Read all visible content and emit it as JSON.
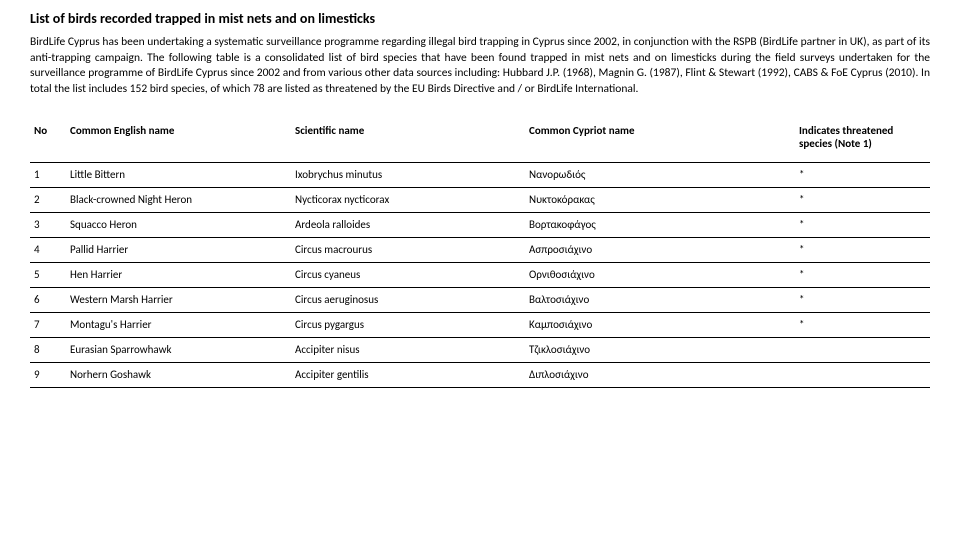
{
  "title": "List of birds recorded trapped in mist nets and on limesticks",
  "paragraph": "BirdLife Cyprus has been undertaking a systematic surveillance programme regarding illegal bird trapping in Cyprus since 2002, in conjunction with the RSPB (BirdLife partner in UK), as part of its anti-trapping campaign. The following table is a consolidated list of bird species that have been found trapped in mist nets and on limesticks during the field surveys undertaken for the surveillance programme of BirdLife Cyprus since 2002 and from various other data sources including: Hubbard J.P. (1968), Magnin G. (1987), Flint & Stewart (1992), CABS & FoE Cyprus (2010). In total the list includes 152 bird species, of which 78 are listed as threatened by the EU Birds Directive and / or BirdLife International.",
  "columns": {
    "no": "No",
    "english": "Common English name",
    "scientific": "Scientific name",
    "cypriot": "Common Cypriot name",
    "threatened": "Indicates threatened species (Note 1)"
  },
  "rows": [
    {
      "no": "1",
      "en": "Little Bittern",
      "sci": "Ixobrychus minutus",
      "cy": "Νανορωδιός",
      "flag": "*"
    },
    {
      "no": "2",
      "en": "Black-crowned Night Heron",
      "sci": "Nycticorax nycticorax",
      "cy": "Νυκτοκόρακας",
      "flag": "*"
    },
    {
      "no": "3",
      "en": "Squacco Heron",
      "sci": "Ardeola ralloides",
      "cy": "Βορτακοφάγος",
      "flag": "*"
    },
    {
      "no": "4",
      "en": "Pallid Harrier",
      "sci": "Circus macrourus",
      "cy": "Ασπροσιάχινο",
      "flag": "*"
    },
    {
      "no": "5",
      "en": "Hen Harrier",
      "sci": "Circus cyaneus",
      "cy": "Ορνιθοσιάχινο",
      "flag": "*"
    },
    {
      "no": "6",
      "en": "Western Marsh Harrier",
      "sci": "Circus aeruginosus",
      "cy": "Βαλτοσιάχινο",
      "flag": "*"
    },
    {
      "no": "7",
      "en": "Montagu's Harrier",
      "sci": "Circus pygargus",
      "cy": "Καμποσιάχινο",
      "flag": "*"
    },
    {
      "no": "8",
      "en": "Eurasian Sparrowhawk",
      "sci": "Accipiter nisus",
      "cy": "Τζικλοσιάχινο",
      "flag": ""
    },
    {
      "no": "9",
      "en": "Norhern Goshawk",
      "sci": "Accipiter gentilis",
      "cy": "Διπλοσιάχινο",
      "flag": ""
    }
  ]
}
